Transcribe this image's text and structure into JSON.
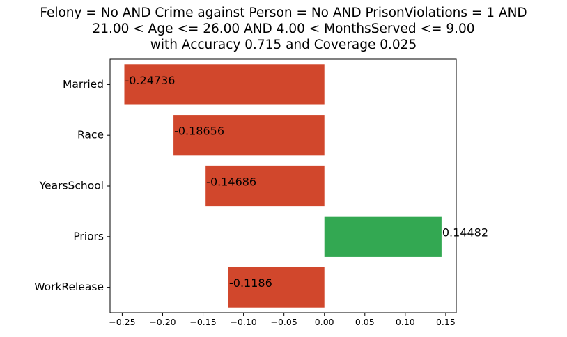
{
  "title_lines": [
    "Felony = No AND Crime against Person = No AND PrisonViolations = 1 AND",
    "21.00 < Age <= 26.00 AND 4.00 < MonthsServed <= 9.00",
    "with Accuracy 0.715 and Coverage 0.025"
  ],
  "chart_data": {
    "type": "bar",
    "orientation": "horizontal",
    "title": "Felony = No AND Crime against Person = No AND PrisonViolations = 1 AND 21.00 < Age <= 26.00 AND 4.00 < MonthsServed <= 9.00 with Accuracy 0.715 and Coverage 0.025",
    "xlabel": "",
    "ylabel": "",
    "categories": [
      "Married",
      "Race",
      "YearsSchool",
      "Priors",
      "WorkRelease"
    ],
    "values": [
      -0.24736,
      -0.18656,
      -0.14686,
      0.14482,
      -0.1186
    ],
    "data_labels": [
      "-0.24736",
      "-0.18656",
      "-0.14686",
      "0.14482",
      "-0.1186"
    ],
    "xlim": [
      -0.265,
      0.163
    ],
    "xticks": [
      -0.25,
      -0.2,
      -0.15,
      -0.1,
      -0.05,
      0.0,
      0.05,
      0.1,
      0.15
    ],
    "xtick_labels": [
      "−0.25",
      "−0.20",
      "−0.15",
      "−0.10",
      "−0.05",
      "0.00",
      "0.05",
      "0.10",
      "0.15"
    ],
    "grid": false,
    "legend": "none",
    "colors": {
      "negative": "#d1472c",
      "positive": "#33a852",
      "axis": "#000000"
    }
  }
}
